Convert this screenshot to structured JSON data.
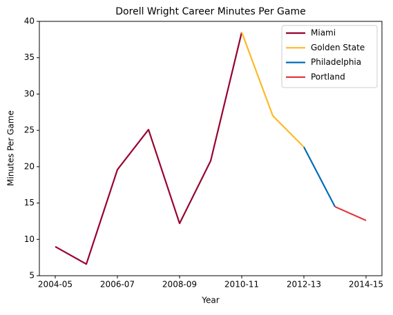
{
  "chart_data": {
    "type": "line",
    "title": "Dorell Wright Career Minutes Per Game",
    "xlabel": "Year",
    "ylabel": "Minutes Per Game",
    "categories": [
      "2004-05",
      null,
      "2006-07",
      null,
      "2008-09",
      null,
      "2010-11",
      null,
      "2012-13",
      null,
      "2014-15"
    ],
    "series": [
      {
        "name": "Miami",
        "color": "#98002e",
        "values": [
          9.0,
          6.6,
          19.6,
          25.1,
          12.2,
          20.8,
          38.5,
          null,
          null,
          null,
          null
        ]
      },
      {
        "name": "Golden State",
        "color": "#fdb927",
        "values": [
          null,
          null,
          null,
          null,
          null,
          null,
          38.5,
          27.0,
          22.7,
          null,
          null
        ]
      },
      {
        "name": "Philadelphia",
        "color": "#006bb6",
        "values": [
          null,
          null,
          null,
          null,
          null,
          null,
          null,
          null,
          22.7,
          14.5,
          null
        ]
      },
      {
        "name": "Portland",
        "color": "#e03a3e",
        "values": [
          null,
          null,
          null,
          null,
          null,
          null,
          null,
          null,
          null,
          14.5,
          12.6
        ]
      }
    ],
    "ylim": [
      5,
      40
    ],
    "yticks": [
      5,
      10,
      15,
      20,
      25,
      30,
      35,
      40
    ],
    "grid": false,
    "legend": "upper right"
  }
}
